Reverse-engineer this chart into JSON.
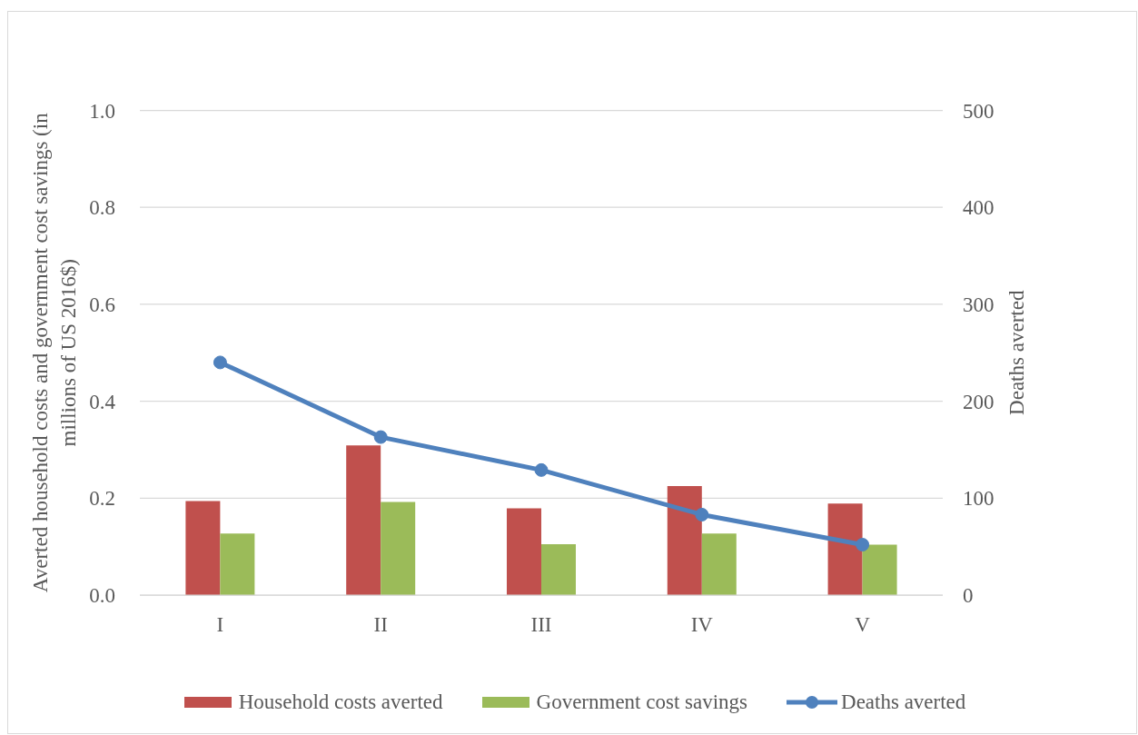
{
  "chart_data": {
    "type": "bar",
    "categories": [
      "I",
      "II",
      "III",
      "IV",
      "V"
    ],
    "series": [
      {
        "name": "Household costs averted",
        "color": "#c0504d",
        "values": [
          0.194,
          0.309,
          0.179,
          0.225,
          0.189
        ]
      },
      {
        "name": "Government cost savings",
        "color": "#9bbb59",
        "values": [
          0.127,
          0.192,
          0.105,
          0.127,
          0.104
        ]
      },
      {
        "name": "Deaths averted",
        "type": "line",
        "axis": "y2",
        "color": "#4f81bd",
        "values": [
          240,
          163,
          129,
          83,
          52
        ]
      }
    ],
    "ylabel": "Averted household costs and government cost savings (in millions of US 2016$)",
    "y2label": "Deaths averted",
    "ylim": [
      0,
      1
    ],
    "yticks": [
      {
        "value": 0,
        "label": "0.0"
      },
      0.2,
      0.4,
      0.6,
      0.8,
      {
        "value": 1,
        "label": "1.0"
      }
    ],
    "y2lim": [
      0,
      500
    ],
    "y2ticks": [
      0,
      100,
      200,
      300,
      400,
      500
    ],
    "grid": "y",
    "legend": "bottom",
    "marker": "circle",
    "line_style": "solid"
  }
}
